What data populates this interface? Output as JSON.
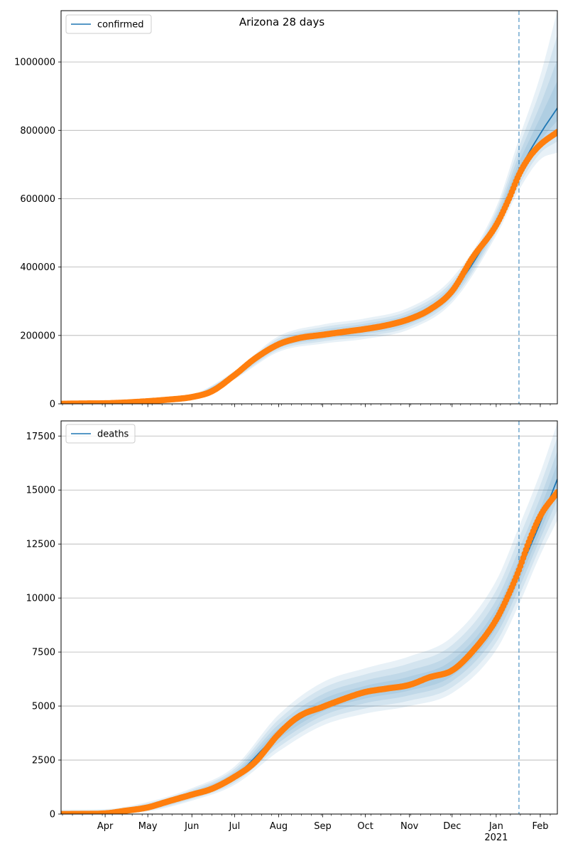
{
  "figure": {
    "title": "Arizona 28 days"
  },
  "colors": {
    "model": "#1f77b4",
    "observed": "#ff7f0e",
    "band": "#1f77b4",
    "grid": "#b0b0b0",
    "vline": "#1f77b4"
  },
  "chart_data": [
    {
      "type": "line",
      "legend": [
        "confirmed"
      ],
      "legend_position": "top-left",
      "grid": "horizontal",
      "x_range": [
        "2020-03-01",
        "2021-02-13"
      ],
      "ylim": [
        0,
        1150000
      ],
      "yticks": [
        0,
        200000,
        400000,
        600000,
        800000,
        1000000
      ],
      "vline_date": "2021-01-17",
      "observed_points": [
        [
          "2020-03-01",
          0
        ],
        [
          "2020-03-15",
          1000
        ],
        [
          "2020-04-01",
          1600
        ],
        [
          "2020-04-15",
          3800
        ],
        [
          "2020-05-01",
          7700
        ],
        [
          "2020-05-15",
          12200
        ],
        [
          "2020-06-01",
          20000
        ],
        [
          "2020-06-15",
          36700
        ],
        [
          "2020-07-01",
          84100
        ],
        [
          "2020-07-15",
          131400
        ],
        [
          "2020-08-01",
          174000
        ],
        [
          "2020-08-15",
          192000
        ],
        [
          "2020-09-01",
          202000
        ],
        [
          "2020-09-15",
          210000
        ],
        [
          "2020-10-01",
          219000
        ],
        [
          "2020-10-15",
          229000
        ],
        [
          "2020-11-01",
          248000
        ],
        [
          "2020-11-15",
          275000
        ],
        [
          "2020-12-01",
          330000
        ],
        [
          "2020-12-15",
          425000
        ],
        [
          "2021-01-01",
          523000
        ],
        [
          "2021-01-10",
          600000
        ],
        [
          "2021-01-17",
          670000
        ],
        [
          "2021-01-24",
          720000
        ],
        [
          "2021-02-01",
          758000
        ],
        [
          "2021-02-13",
          795000
        ]
      ],
      "model_curve": [
        [
          "2020-03-01",
          0
        ],
        [
          "2020-04-01",
          1700
        ],
        [
          "2020-05-01",
          7500
        ],
        [
          "2020-06-01",
          20000
        ],
        [
          "2020-07-01",
          84000
        ],
        [
          "2020-08-01",
          174000
        ],
        [
          "2020-09-01",
          202000
        ],
        [
          "2020-10-01",
          219000
        ],
        [
          "2020-11-01",
          248000
        ],
        [
          "2020-12-01",
          330000
        ],
        [
          "2021-01-01",
          530000
        ],
        [
          "2021-01-17",
          680000
        ],
        [
          "2021-02-01",
          790000
        ],
        [
          "2021-02-13",
          865000
        ]
      ],
      "band_upper": [
        [
          "2020-03-01",
          3000
        ],
        [
          "2020-04-01",
          4000
        ],
        [
          "2020-05-01",
          10500
        ],
        [
          "2020-06-01",
          26000
        ],
        [
          "2020-07-01",
          96000
        ],
        [
          "2020-08-01",
          198000
        ],
        [
          "2020-09-01",
          232000
        ],
        [
          "2020-10-01",
          250000
        ],
        [
          "2020-11-01",
          282000
        ],
        [
          "2020-12-01",
          368000
        ],
        [
          "2021-01-01",
          575000
        ],
        [
          "2021-01-17",
          775000
        ],
        [
          "2021-02-01",
          960000
        ],
        [
          "2021-02-13",
          1150000
        ]
      ],
      "band_lower": [
        [
          "2020-03-01",
          0
        ],
        [
          "2020-04-01",
          600
        ],
        [
          "2020-05-01",
          5000
        ],
        [
          "2020-06-01",
          15000
        ],
        [
          "2020-07-01",
          72000
        ],
        [
          "2020-08-01",
          152000
        ],
        [
          "2020-09-01",
          176000
        ],
        [
          "2020-10-01",
          190000
        ],
        [
          "2020-11-01",
          218000
        ],
        [
          "2020-12-01",
          296000
        ],
        [
          "2021-01-01",
          492000
        ],
        [
          "2021-01-17",
          625000
        ],
        [
          "2021-02-01",
          715000
        ],
        [
          "2021-02-13",
          735000
        ]
      ]
    },
    {
      "type": "line",
      "legend": [
        "deaths"
      ],
      "legend_position": "top-left",
      "grid": "horizontal",
      "x_range": [
        "2020-03-01",
        "2021-02-13"
      ],
      "ylim": [
        0,
        18200
      ],
      "yticks": [
        0,
        2500,
        5000,
        7500,
        10000,
        12500,
        15000,
        17500
      ],
      "vline_date": "2021-01-17",
      "observed_points": [
        [
          "2020-03-01",
          0
        ],
        [
          "2020-03-15",
          5
        ],
        [
          "2020-04-01",
          30
        ],
        [
          "2020-04-15",
          150
        ],
        [
          "2020-05-01",
          310
        ],
        [
          "2020-05-15",
          580
        ],
        [
          "2020-06-01",
          900
        ],
        [
          "2020-06-15",
          1170
        ],
        [
          "2020-07-01",
          1720
        ],
        [
          "2020-07-15",
          2380
        ],
        [
          "2020-08-01",
          3700
        ],
        [
          "2020-08-15",
          4510
        ],
        [
          "2020-09-01",
          4960
        ],
        [
          "2020-09-15",
          5310
        ],
        [
          "2020-10-01",
          5650
        ],
        [
          "2020-10-15",
          5800
        ],
        [
          "2020-11-01",
          5980
        ],
        [
          "2020-11-15",
          6330
        ],
        [
          "2020-12-01",
          6650
        ],
        [
          "2020-12-15",
          7500
        ],
        [
          "2021-01-01",
          9000
        ],
        [
          "2021-01-10",
          10200
        ],
        [
          "2021-01-17",
          11300
        ],
        [
          "2021-01-24",
          12600
        ],
        [
          "2021-02-01",
          13800
        ],
        [
          "2021-02-13",
          14900
        ]
      ],
      "model_curve": [
        [
          "2020-03-01",
          0
        ],
        [
          "2020-04-01",
          40
        ],
        [
          "2020-05-01",
          320
        ],
        [
          "2020-06-01",
          900
        ],
        [
          "2020-07-01",
          1750
        ],
        [
          "2020-08-01",
          3700
        ],
        [
          "2020-09-01",
          5000
        ],
        [
          "2020-10-01",
          5620
        ],
        [
          "2020-11-01",
          6000
        ],
        [
          "2020-12-01",
          6700
        ],
        [
          "2021-01-01",
          9000
        ],
        [
          "2021-01-17",
          11200
        ],
        [
          "2021-02-01",
          13500
        ],
        [
          "2021-02-13",
          15500
        ]
      ],
      "band_upper": [
        [
          "2020-03-01",
          200
        ],
        [
          "2020-04-01",
          230
        ],
        [
          "2020-05-01",
          560
        ],
        [
          "2020-06-01",
          1200
        ],
        [
          "2020-07-01",
          2200
        ],
        [
          "2020-08-01",
          4600
        ],
        [
          "2020-09-01",
          6100
        ],
        [
          "2020-10-01",
          6750
        ],
        [
          "2020-11-01",
          7300
        ],
        [
          "2020-12-01",
          8200
        ],
        [
          "2021-01-01",
          10800
        ],
        [
          "2021-01-17",
          13300
        ],
        [
          "2021-02-01",
          15800
        ],
        [
          "2021-02-13",
          18100
        ]
      ],
      "band_lower": [
        [
          "2020-03-01",
          0
        ],
        [
          "2020-04-01",
          0
        ],
        [
          "2020-05-01",
          120
        ],
        [
          "2020-06-01",
          620
        ],
        [
          "2020-07-01",
          1350
        ],
        [
          "2020-08-01",
          2900
        ],
        [
          "2020-09-01",
          4100
        ],
        [
          "2020-10-01",
          4650
        ],
        [
          "2020-11-01",
          5000
        ],
        [
          "2020-12-01",
          5600
        ],
        [
          "2021-01-01",
          7600
        ],
        [
          "2021-01-17",
          9700
        ],
        [
          "2021-02-01",
          12000
        ],
        [
          "2021-02-13",
          13600
        ]
      ]
    }
  ],
  "x_axis": {
    "month_ticks": [
      {
        "date": "2020-04-01",
        "label": "Apr"
      },
      {
        "date": "2020-05-01",
        "label": "May"
      },
      {
        "date": "2020-06-01",
        "label": "Jun"
      },
      {
        "date": "2020-07-01",
        "label": "Jul"
      },
      {
        "date": "2020-08-01",
        "label": "Aug"
      },
      {
        "date": "2020-09-01",
        "label": "Sep"
      },
      {
        "date": "2020-10-01",
        "label": "Oct"
      },
      {
        "date": "2020-11-01",
        "label": "Nov"
      },
      {
        "date": "2020-12-01",
        "label": "Dec"
      },
      {
        "date": "2021-01-01",
        "label": "Jan"
      },
      {
        "date": "2021-02-01",
        "label": "Feb"
      }
    ],
    "year_label": {
      "date": "2021-01-01",
      "label": "2021"
    }
  }
}
